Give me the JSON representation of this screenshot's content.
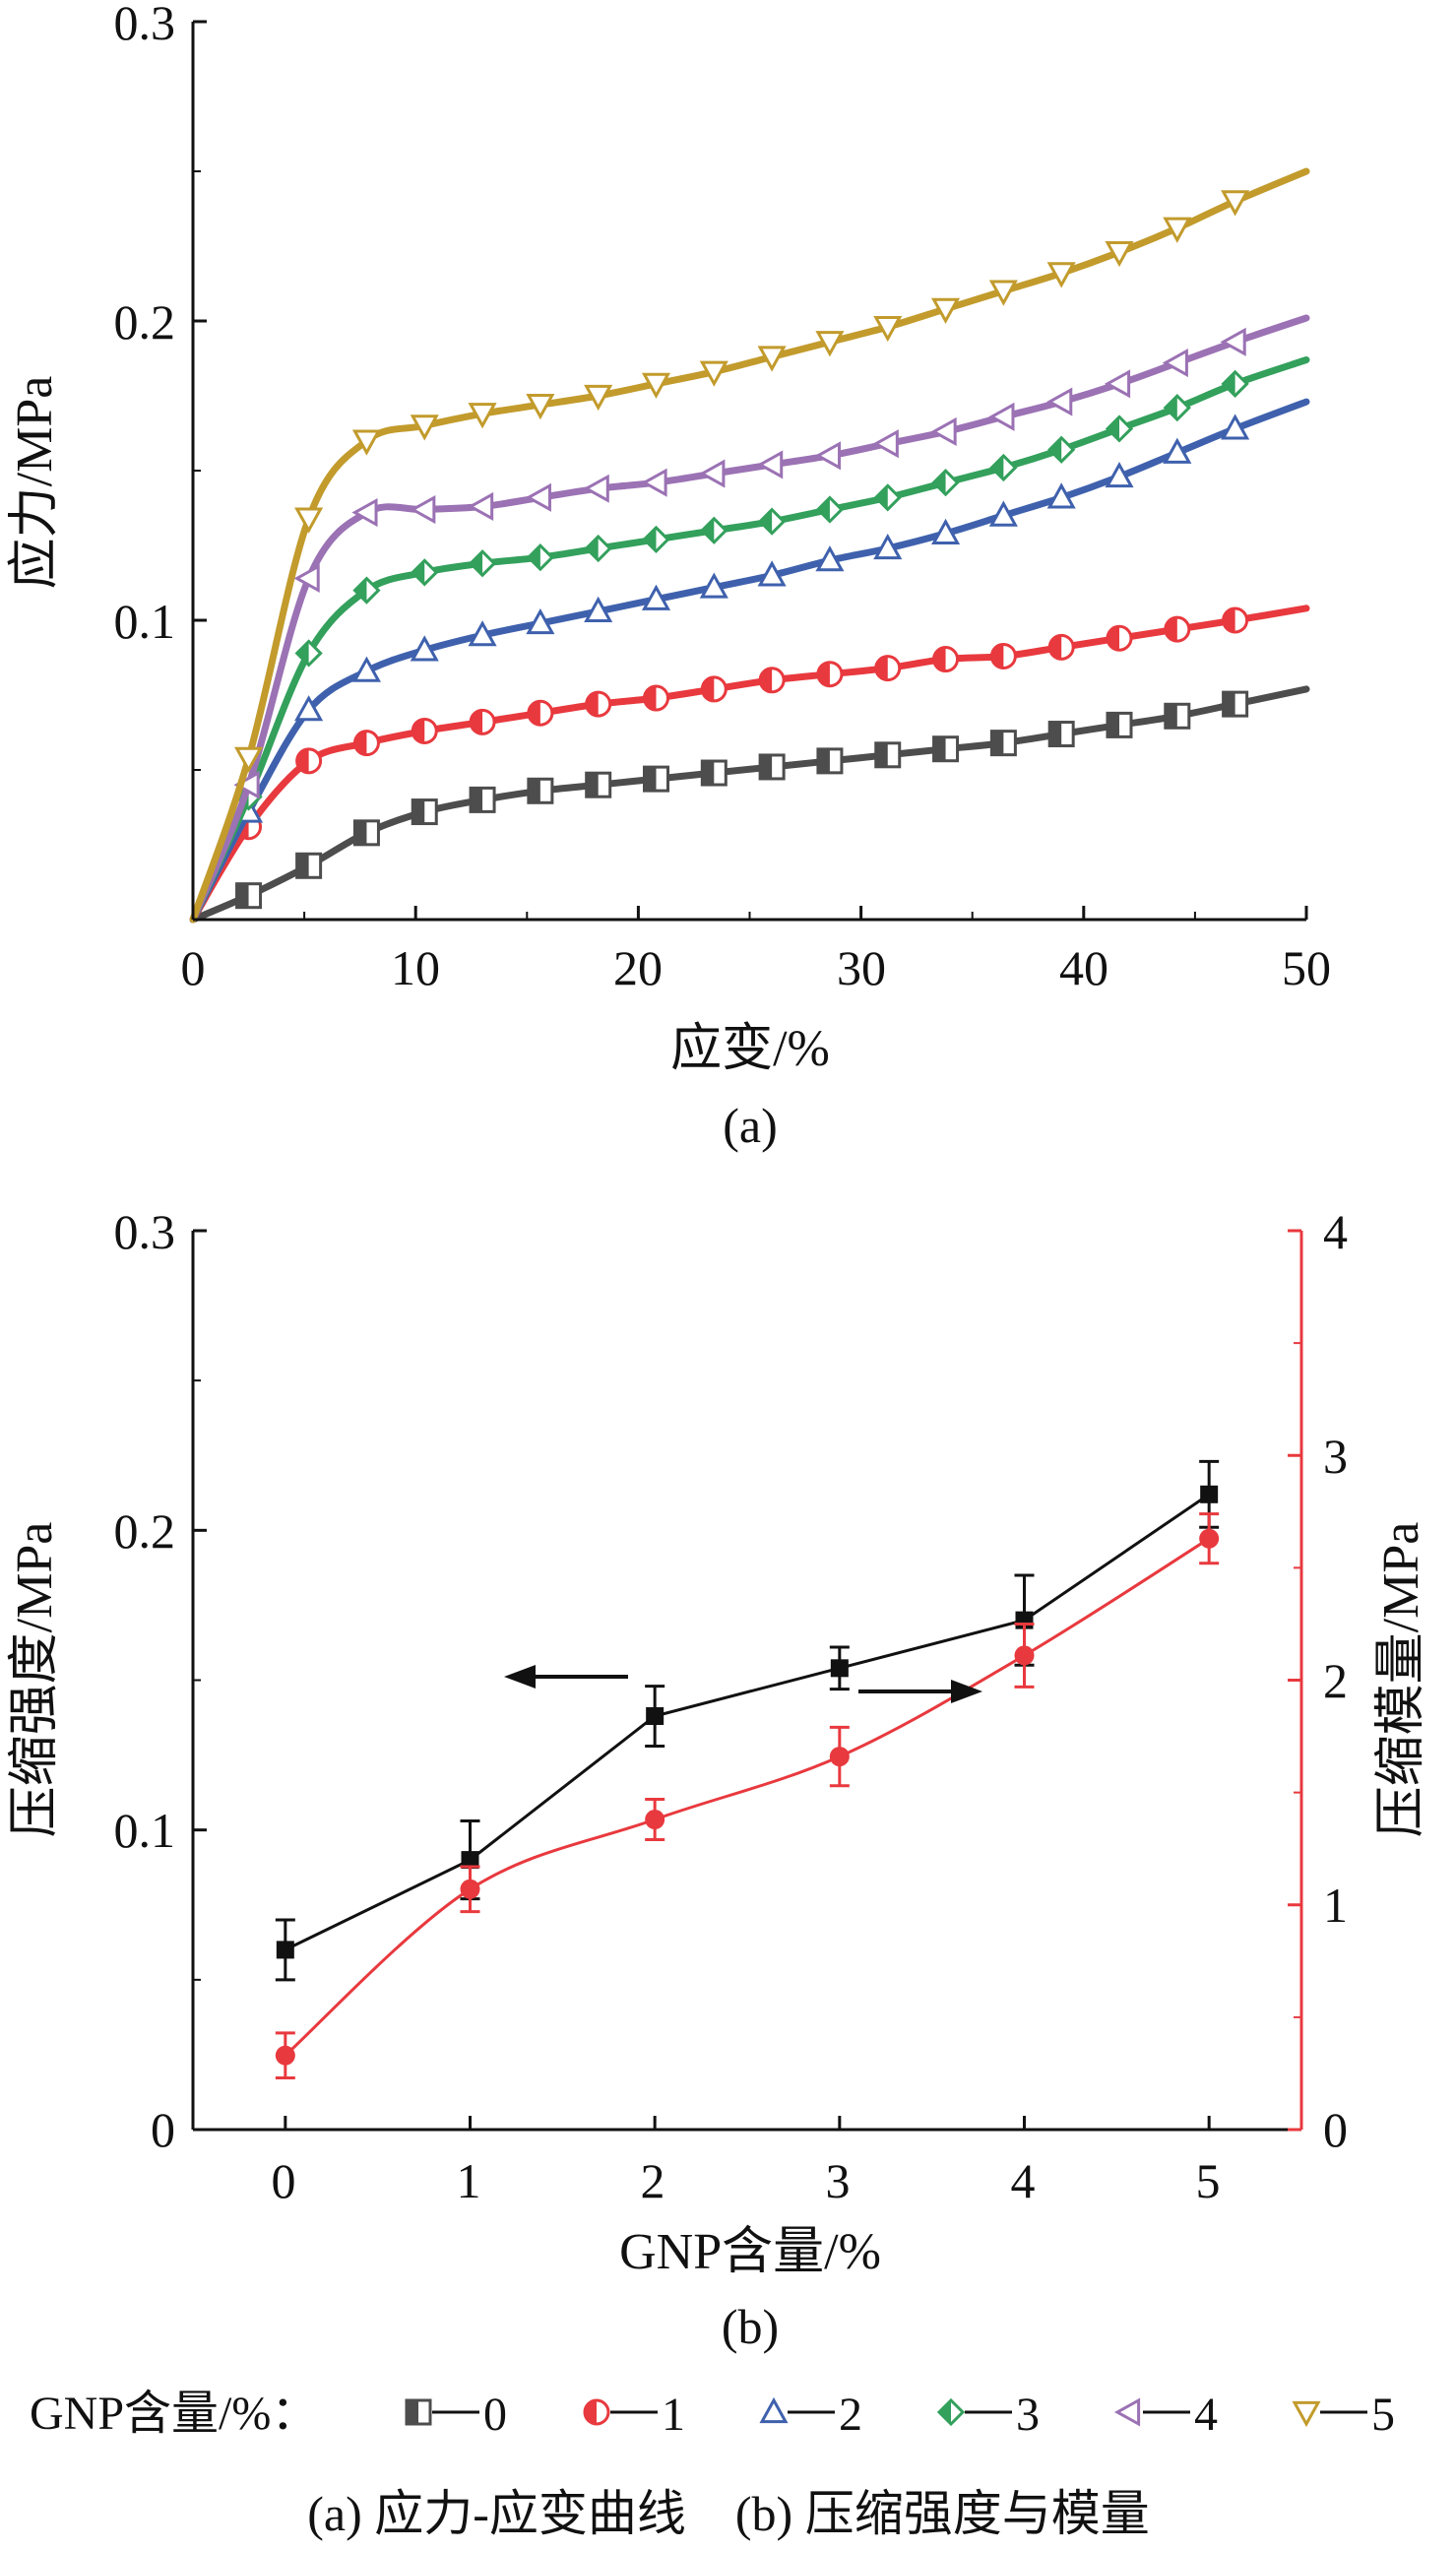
{
  "chart_data": [
    {
      "type": "line",
      "panel_label": "(a)",
      "xlabel": "应变/%",
      "ylabel": "应力/MPa",
      "xlim": [
        0,
        50
      ],
      "ylim": [
        0,
        0.3
      ],
      "x_ticks": [
        "0",
        "10",
        "20",
        "30",
        "40",
        "50"
      ],
      "y_ticks": [
        "0.1",
        "0.2",
        "0.3"
      ],
      "grid": false,
      "series": [
        {
          "name": "0",
          "color": "#4d4d4d",
          "marker": "square-half",
          "points": [
            [
              0,
              0
            ],
            [
              2.5,
              0.008
            ],
            [
              5.2,
              0.018
            ],
            [
              7.8,
              0.029
            ],
            [
              10.4,
              0.036
            ],
            [
              13,
              0.04
            ],
            [
              15.6,
              0.043
            ],
            [
              18.2,
              0.045
            ],
            [
              20.8,
              0.047
            ],
            [
              23.4,
              0.049
            ],
            [
              26,
              0.051
            ],
            [
              28.6,
              0.053
            ],
            [
              31.2,
              0.055
            ],
            [
              33.8,
              0.057
            ],
            [
              36.4,
              0.059
            ],
            [
              39,
              0.062
            ],
            [
              41.6,
              0.065
            ],
            [
              44.2,
              0.068
            ],
            [
              46.8,
              0.072
            ],
            [
              50,
              0.077
            ]
          ]
        },
        {
          "name": "1",
          "color": "#e8393e",
          "marker": "circle-half",
          "points": [
            [
              0,
              0
            ],
            [
              2.5,
              0.031
            ],
            [
              5.2,
              0.053
            ],
            [
              7.8,
              0.059
            ],
            [
              10.4,
              0.063
            ],
            [
              13,
              0.066
            ],
            [
              15.6,
              0.069
            ],
            [
              18.2,
              0.072
            ],
            [
              20.8,
              0.074
            ],
            [
              23.4,
              0.077
            ],
            [
              26,
              0.08
            ],
            [
              28.6,
              0.082
            ],
            [
              31.2,
              0.084
            ],
            [
              33.8,
              0.087
            ],
            [
              36.4,
              0.088
            ],
            [
              39,
              0.091
            ],
            [
              41.6,
              0.094
            ],
            [
              44.2,
              0.097
            ],
            [
              46.8,
              0.1
            ],
            [
              50,
              0.104
            ]
          ]
        },
        {
          "name": "2",
          "color": "#3f61ad",
          "marker": "triangle-up",
          "points": [
            [
              0,
              0
            ],
            [
              2.5,
              0.036
            ],
            [
              5.2,
              0.07
            ],
            [
              7.8,
              0.083
            ],
            [
              10.4,
              0.09
            ],
            [
              13,
              0.095
            ],
            [
              15.6,
              0.099
            ],
            [
              18.2,
              0.103
            ],
            [
              20.8,
              0.107
            ],
            [
              23.4,
              0.111
            ],
            [
              26,
              0.115
            ],
            [
              28.6,
              0.12
            ],
            [
              31.2,
              0.124
            ],
            [
              33.8,
              0.129
            ],
            [
              36.4,
              0.135
            ],
            [
              39,
              0.141
            ],
            [
              41.6,
              0.148
            ],
            [
              44.2,
              0.156
            ],
            [
              46.8,
              0.164
            ],
            [
              50,
              0.173
            ]
          ]
        },
        {
          "name": "3",
          "color": "#33a05c",
          "marker": "diamond-half",
          "points": [
            [
              0,
              0
            ],
            [
              2.5,
              0.041
            ],
            [
              5.2,
              0.089
            ],
            [
              7.8,
              0.11
            ],
            [
              10.4,
              0.116
            ],
            [
              13,
              0.119
            ],
            [
              15.6,
              0.121
            ],
            [
              18.2,
              0.124
            ],
            [
              20.8,
              0.127
            ],
            [
              23.4,
              0.13
            ],
            [
              26,
              0.133
            ],
            [
              28.6,
              0.137
            ],
            [
              31.2,
              0.141
            ],
            [
              33.8,
              0.146
            ],
            [
              36.4,
              0.151
            ],
            [
              39,
              0.157
            ],
            [
              41.6,
              0.164
            ],
            [
              44.2,
              0.171
            ],
            [
              46.8,
              0.179
            ],
            [
              50,
              0.187
            ]
          ]
        },
        {
          "name": "4",
          "color": "#9b72b4",
          "marker": "triangle-left",
          "points": [
            [
              0,
              0
            ],
            [
              2.5,
              0.045
            ],
            [
              5.2,
              0.114
            ],
            [
              7.8,
              0.136
            ],
            [
              10.4,
              0.137
            ],
            [
              13,
              0.138
            ],
            [
              15.6,
              0.141
            ],
            [
              18.2,
              0.144
            ],
            [
              20.8,
              0.146
            ],
            [
              23.4,
              0.149
            ],
            [
              26,
              0.152
            ],
            [
              28.6,
              0.155
            ],
            [
              31.2,
              0.159
            ],
            [
              33.8,
              0.163
            ],
            [
              36.4,
              0.168
            ],
            [
              39,
              0.173
            ],
            [
              41.6,
              0.179
            ],
            [
              44.2,
              0.186
            ],
            [
              46.8,
              0.193
            ],
            [
              50,
              0.201
            ]
          ]
        },
        {
          "name": "5",
          "color": "#c29b2c",
          "marker": "triangle-down",
          "points": [
            [
              0,
              0
            ],
            [
              2.5,
              0.054
            ],
            [
              5.2,
              0.134
            ],
            [
              7.8,
              0.16
            ],
            [
              10.4,
              0.165
            ],
            [
              13,
              0.169
            ],
            [
              15.6,
              0.172
            ],
            [
              18.2,
              0.175
            ],
            [
              20.8,
              0.179
            ],
            [
              23.4,
              0.183
            ],
            [
              26,
              0.188
            ],
            [
              28.6,
              0.193
            ],
            [
              31.2,
              0.198
            ],
            [
              33.8,
              0.204
            ],
            [
              36.4,
              0.21
            ],
            [
              39,
              0.216
            ],
            [
              41.6,
              0.223
            ],
            [
              44.2,
              0.231
            ],
            [
              46.8,
              0.24
            ],
            [
              50,
              0.25
            ]
          ]
        }
      ]
    },
    {
      "type": "line",
      "panel_label": "(b)",
      "xlabel": "GNP含量/%",
      "ylabel": "压缩强度/MPa",
      "y2label": "压缩模量/MPa",
      "xlim": [
        -0.5,
        5.5
      ],
      "ylim": [
        0,
        0.3
      ],
      "y2lim": [
        0,
        4
      ],
      "x_ticks": [
        "0",
        "1",
        "2",
        "3",
        "4",
        "5"
      ],
      "y_ticks": [
        "0",
        "0.1",
        "0.2",
        "0.3"
      ],
      "y2_ticks": [
        "0",
        "1",
        "2",
        "3",
        "4"
      ],
      "grid": false,
      "series": [
        {
          "name": "压缩强度",
          "axis": "left",
          "color": "#111111",
          "marker": "square",
          "x": [
            0,
            1,
            2,
            3,
            4,
            5
          ],
          "values": [
            0.06,
            0.09,
            0.138,
            0.154,
            0.17,
            0.212
          ],
          "errors": [
            0.01,
            0.013,
            0.01,
            0.007,
            0.015,
            0.011
          ]
        },
        {
          "name": "压缩模量",
          "axis": "right",
          "color": "#e8393e",
          "marker": "circle",
          "x": [
            0,
            1,
            2,
            3,
            4,
            5
          ],
          "values": [
            0.33,
            1.07,
            1.38,
            1.66,
            2.11,
            2.63
          ],
          "errors": [
            0.1,
            0.1,
            0.09,
            0.13,
            0.14,
            0.11
          ]
        }
      ]
    }
  ],
  "legend": {
    "title": "GNP含量/%：",
    "placement": "bottom",
    "entries": [
      "0",
      "1",
      "2",
      "3",
      "4",
      "5"
    ]
  },
  "caption": "(a) 应力-应变曲线    (b) 压缩强度与模量"
}
